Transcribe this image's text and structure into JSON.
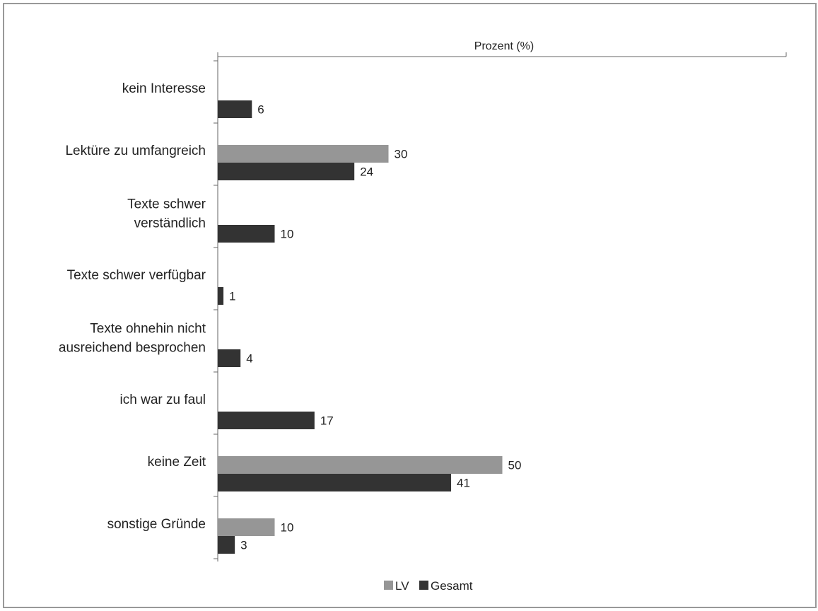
{
  "chart_data": {
    "type": "bar",
    "orientation": "horizontal",
    "x_axis_title": "Prozent (%)",
    "xlim": [
      0,
      100
    ],
    "grid": false,
    "legend_position": "bottom",
    "categories": [
      "kein Interesse",
      "Lektüre zu umfangreich",
      "Texte schwer verständlich",
      "Texte schwer verfügbar",
      "Texte ohnehin nicht ausreichend besprochen",
      "ich war zu faul",
      "keine Zeit",
      "sonstige Gründe"
    ],
    "category_lines": [
      [
        "kein Interesse"
      ],
      [
        "Lektüre zu umfangreich"
      ],
      [
        "Texte schwer",
        "verständlich"
      ],
      [
        "Texte schwer verfügbar"
      ],
      [
        "Texte ohnehin nicht",
        "ausreichend besprochen"
      ],
      [
        "ich war zu faul"
      ],
      [
        "keine Zeit"
      ],
      [
        "sonstige Gründe"
      ]
    ],
    "series": [
      {
        "name": "LV",
        "color": "#969696",
        "values": [
          null,
          30,
          null,
          null,
          null,
          null,
          50,
          10
        ]
      },
      {
        "name": "Gesamt",
        "color": "#333333",
        "values": [
          6,
          24,
          10,
          1,
          4,
          17,
          41,
          3
        ]
      }
    ]
  }
}
